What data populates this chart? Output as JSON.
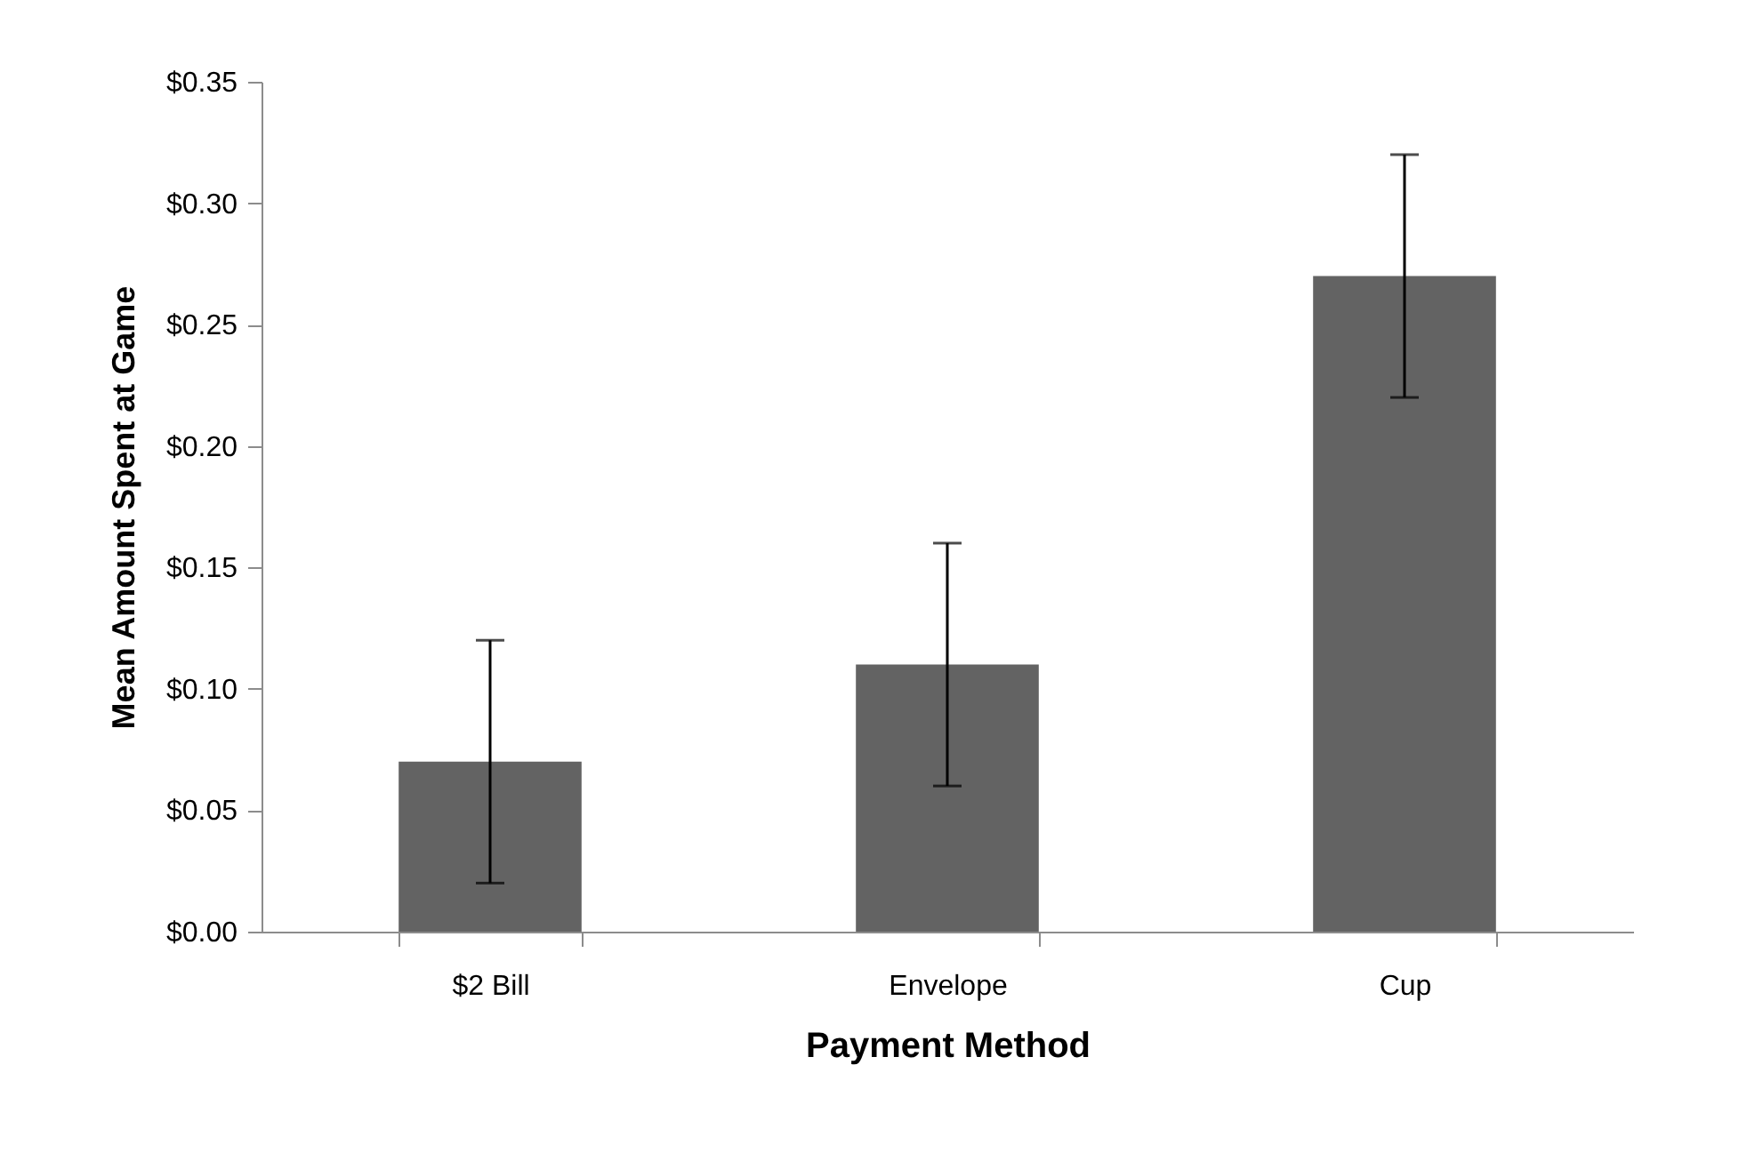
{
  "chart_data": {
    "type": "bar",
    "xlabel": "Payment Method",
    "ylabel": "Mean Amount Spent at Game",
    "categories": [
      "$2 Bill",
      "Envelope",
      "Cup"
    ],
    "values": [
      0.07,
      0.11,
      0.27
    ],
    "errors": [
      0.05,
      0.05,
      0.05
    ],
    "color": "#636363",
    "ylim": [
      0,
      0.35
    ],
    "yticks": [
      {
        "value": 0,
        "label": "$0.00"
      },
      {
        "value": 0.05,
        "label": "$0.05"
      },
      {
        "value": 0.1,
        "label": "$0.10"
      },
      {
        "value": 0.15,
        "label": "$0.15"
      },
      {
        "value": 0.2,
        "label": "$0.20"
      },
      {
        "value": 0.25,
        "label": "$0.25"
      },
      {
        "value": 0.3,
        "label": "$0.30"
      },
      {
        "value": 0.35,
        "label": "$0.35"
      }
    ],
    "grid": false
  }
}
